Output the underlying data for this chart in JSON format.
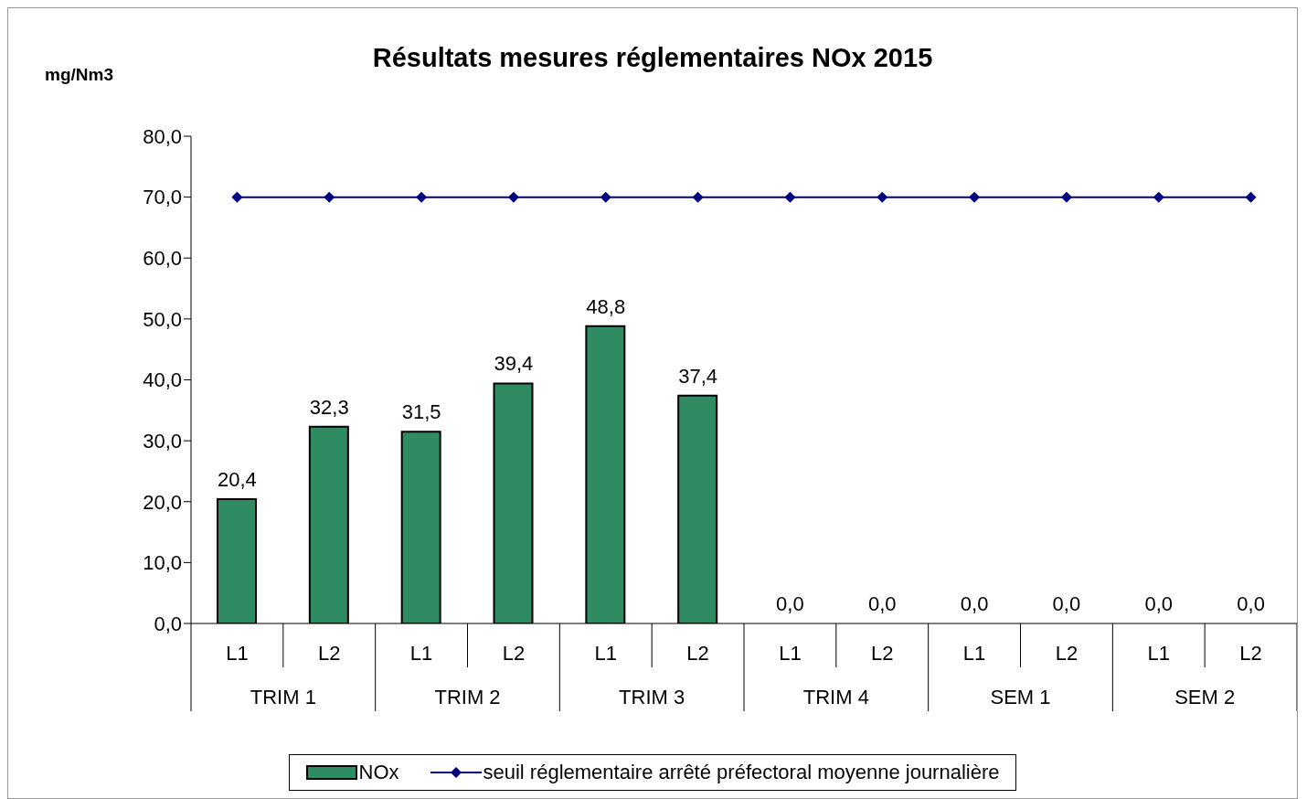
{
  "chart_data": {
    "type": "bar",
    "title": "Résultats mesures réglementaires NOx 2015",
    "ylabel": "mg/Nm3",
    "categories": [
      "L1",
      "L2",
      "L1",
      "L2",
      "L1",
      "L2",
      "L1",
      "L2",
      "L1",
      "L2",
      "L1",
      "L2"
    ],
    "annotations": [
      "TRIM 1",
      "TRIM 2",
      "TRIM 3",
      "TRIM 4",
      "SEM 1",
      "SEM 2"
    ],
    "series": [
      {
        "name": "NOx",
        "color": "#2e8b62",
        "values": [
          20.4,
          32.3,
          31.5,
          39.4,
          48.8,
          37.4,
          0,
          0,
          0,
          0,
          0,
          0
        ],
        "value_labels": [
          "20,4",
          "32,3",
          "31,5",
          "39,4",
          "48,8",
          "37,4",
          "0,0",
          "0,0",
          "0,0",
          "0,0",
          "0,0",
          "0,0"
        ]
      },
      {
        "name": "seuil réglementaire arrêté préfectoral moyenne journalière",
        "type": "line",
        "color": "#000080",
        "marker": "diamond",
        "values": [
          70,
          70,
          70,
          70,
          70,
          70,
          70,
          70,
          70,
          70,
          70,
          70
        ]
      }
    ],
    "ylim": [
      0,
      80
    ],
    "yticks": [
      {
        "value": 0,
        "label": "0,0"
      },
      {
        "value": 10,
        "label": "10,0"
      },
      {
        "value": 20,
        "label": "20,0"
      },
      {
        "value": 30,
        "label": "30,0"
      },
      {
        "value": 40,
        "label": "40,0"
      },
      {
        "value": 50,
        "label": "50,0"
      },
      {
        "value": 60,
        "label": "60,0"
      },
      {
        "value": 70,
        "label": "70,0"
      },
      {
        "value": 80,
        "label": "80,0"
      }
    ],
    "grid": false,
    "legend": "bottom"
  }
}
